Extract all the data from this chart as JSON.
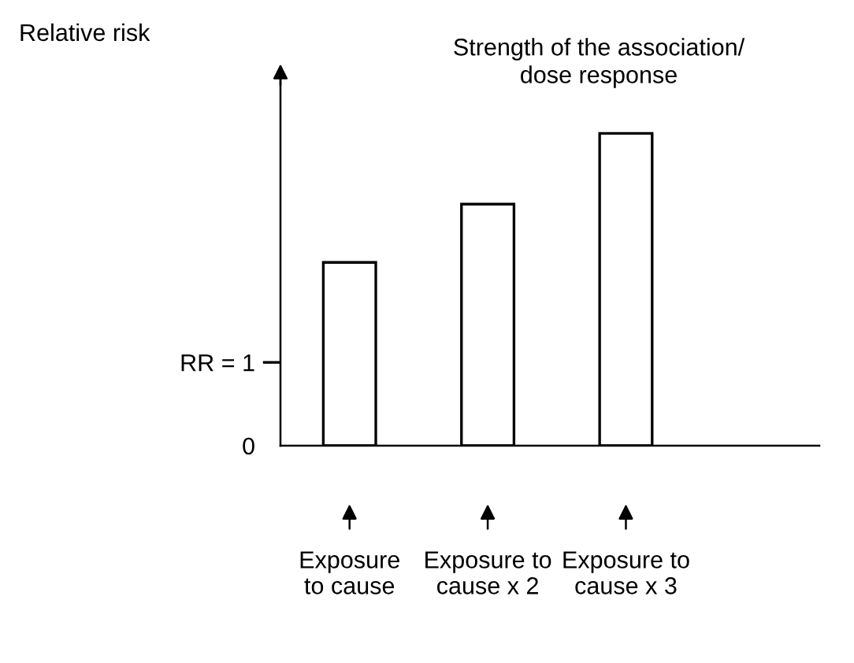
{
  "chart_data": {
    "type": "bar",
    "title": "Strength of the association/\ndose response",
    "ylabel": "Relative risk",
    "categories": [
      "Exposure\nto cause",
      "Exposure to\ncause x 2",
      "Exposure to\ncause x 3"
    ],
    "values": [
      2.2,
      2.9,
      3.75
    ],
    "color": "#ffffff",
    "ylim": [
      0,
      4.5
    ],
    "yticks": [
      0,
      {
        "value": 1,
        "label": "RR = 1"
      }
    ],
    "grid": false,
    "legend": false
  }
}
